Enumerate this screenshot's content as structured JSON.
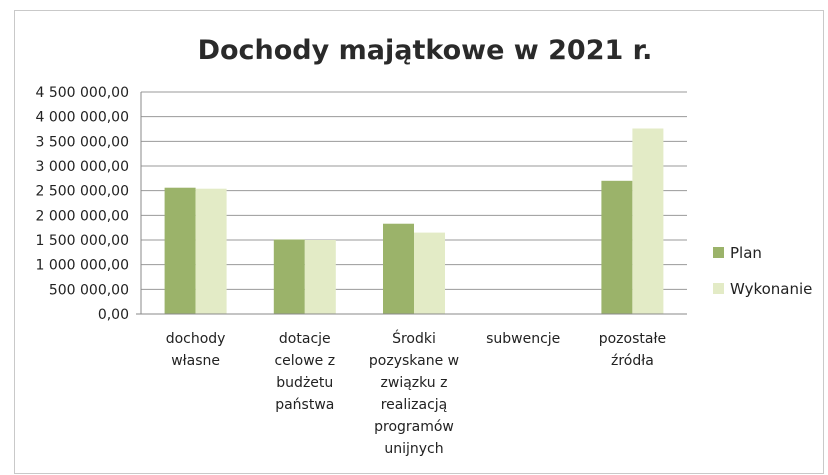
{
  "chart_data": {
    "type": "bar",
    "title": "Dochody majątkowe w 2021 r.",
    "xlabel": "",
    "ylabel": "",
    "ylim": [
      0,
      4500000
    ],
    "y_ticks": [
      {
        "value": 0,
        "label": "0,00"
      },
      {
        "value": 500000,
        "label": "500 000,00"
      },
      {
        "value": 1000000,
        "label": "1 000 000,00"
      },
      {
        "value": 1500000,
        "label": "1 500 000,00"
      },
      {
        "value": 2000000,
        "label": "2 000 000,00"
      },
      {
        "value": 2500000,
        "label": "2 500 000,00"
      },
      {
        "value": 3000000,
        "label": "3 000 000,00"
      },
      {
        "value": 3500000,
        "label": "3 500 000,00"
      },
      {
        "value": 4000000,
        "label": "4 000 000,00"
      },
      {
        "value": 4500000,
        "label": "4 500 000,00"
      }
    ],
    "categories": [
      [
        "dochody",
        "własne"
      ],
      [
        "dotacje",
        "celowe z",
        "budżetu",
        "państwa"
      ],
      [
        "Środki",
        "pozyskane w",
        "związku z",
        "realizacją",
        "programów",
        "unijnych"
      ],
      [
        "subwencje"
      ],
      [
        "pozostałe",
        "źródła"
      ]
    ],
    "series": [
      {
        "name": "Plan",
        "color": "#9bb36a",
        "values": [
          2560000,
          1510000,
          1830000,
          0,
          2700000
        ]
      },
      {
        "name": "Wykonanie",
        "color": "#e3ebc6",
        "values": [
          2540000,
          1500000,
          1650000,
          0,
          3760000
        ]
      }
    ],
    "grid": true,
    "legend_position": "right"
  }
}
